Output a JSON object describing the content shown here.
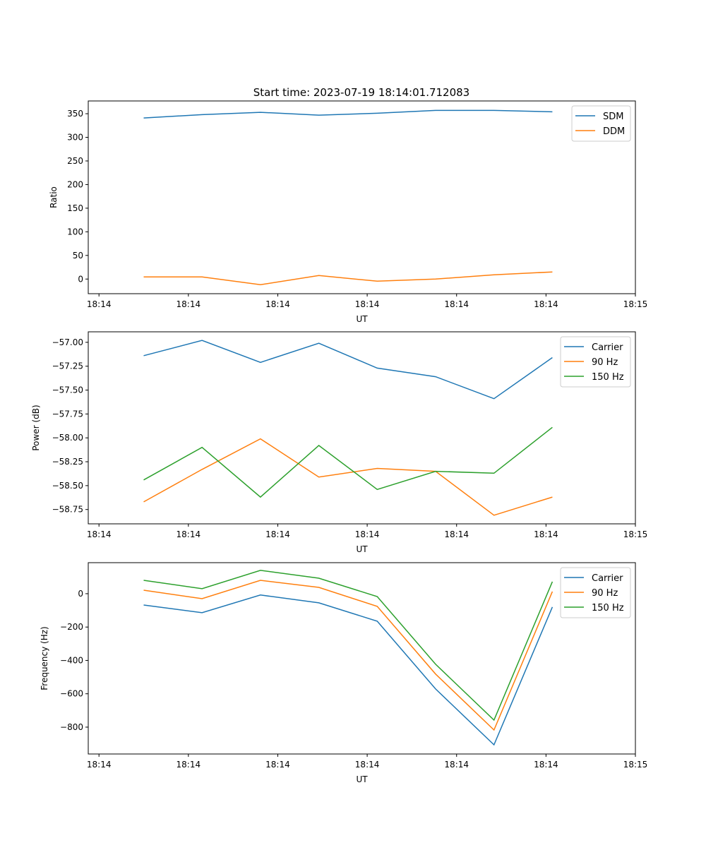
{
  "title": "Start time: 2023-07-19 18:14:01.712083",
  "colors": {
    "c0": "#1f77b4",
    "c1": "#ff7f0e",
    "c2": "#2ca02c"
  },
  "chart_data": [
    {
      "type": "line",
      "title": "Start time: 2023-07-19 18:14:01.712083",
      "xlabel": "UT",
      "ylabel": "Ratio",
      "x": [
        0.5,
        1.153,
        1.806,
        2.459,
        3.112,
        3.765,
        4.418,
        5.071
      ],
      "xlim": [
        -0.12,
        6.0
      ],
      "xticks": [
        0,
        1,
        2,
        3,
        4,
        5,
        6
      ],
      "xtick_labels": [
        "18:14",
        "18:14",
        "18:14",
        "18:14",
        "18:14",
        "18:14",
        "18:15"
      ],
      "ylim": [
        -31,
        377
      ],
      "yticks": [
        0,
        50,
        100,
        150,
        200,
        250,
        300,
        350
      ],
      "ytick_labels": [
        "0",
        "50",
        "100",
        "150",
        "200",
        "250",
        "300",
        "350"
      ],
      "legend": "top-right",
      "series": [
        {
          "name": "SDM",
          "values": [
            341,
            348,
            353,
            347,
            351,
            357,
            357,
            354
          ]
        },
        {
          "name": "DDM",
          "values": [
            4.5,
            4.5,
            -12,
            7.5,
            -4.5,
            0,
            9,
            15
          ]
        }
      ]
    },
    {
      "type": "line",
      "title": "",
      "xlabel": "UT",
      "ylabel": "Power (dB)",
      "x": [
        0.5,
        1.153,
        1.806,
        2.459,
        3.112,
        3.765,
        4.418,
        5.071
      ],
      "xlim": [
        -0.12,
        6.0
      ],
      "xticks": [
        0,
        1,
        2,
        3,
        4,
        5,
        6
      ],
      "xtick_labels": [
        "18:14",
        "18:14",
        "18:14",
        "18:14",
        "18:14",
        "18:14",
        "18:15"
      ],
      "ylim": [
        -58.9,
        -56.89
      ],
      "yticks": [
        -57.0,
        -57.25,
        -57.5,
        -57.75,
        -58.0,
        -58.25,
        -58.5,
        -58.75
      ],
      "ytick_labels": [
        "−57.00",
        "−57.25",
        "−57.50",
        "−57.75",
        "−58.00",
        "−58.25",
        "−58.50",
        "−58.75"
      ],
      "legend": "top-right",
      "series": [
        {
          "name": "Carrier",
          "values": [
            -57.14,
            -56.98,
            -57.21,
            -57.01,
            -57.27,
            -57.36,
            -57.59,
            -57.16
          ]
        },
        {
          "name": "90 Hz",
          "values": [
            -58.67,
            -58.33,
            -58.01,
            -58.41,
            -58.32,
            -58.35,
            -58.81,
            -58.62
          ]
        },
        {
          "name": "150 Hz",
          "values": [
            -58.44,
            -58.1,
            -58.62,
            -58.08,
            -58.54,
            -58.35,
            -58.37,
            -57.89
          ]
        }
      ]
    },
    {
      "type": "line",
      "title": "",
      "xlabel": "UT",
      "ylabel": "Frequency (Hz)",
      "x": [
        0.5,
        1.153,
        1.806,
        2.459,
        3.112,
        3.765,
        4.418,
        5.071
      ],
      "xlim": [
        -0.12,
        6.0
      ],
      "xticks": [
        0,
        1,
        2,
        3,
        4,
        5,
        6
      ],
      "xtick_labels": [
        "18:14",
        "18:14",
        "18:14",
        "18:14",
        "18:14",
        "18:14",
        "18:15"
      ],
      "ylim": [
        -961,
        186
      ],
      "yticks": [
        0,
        -200,
        -400,
        -600,
        -800
      ],
      "ytick_labels": [
        "0",
        "−200",
        "−400",
        "−600",
        "−800"
      ],
      "legend": "top-right",
      "series": [
        {
          "name": "Carrier",
          "values": [
            -68,
            -114,
            -8,
            -55,
            -165,
            -571,
            -906,
            -80
          ]
        },
        {
          "name": "90 Hz",
          "values": [
            21,
            -30,
            80,
            38,
            -76,
            -482,
            -817,
            13
          ]
        },
        {
          "name": "150 Hz",
          "values": [
            80,
            30,
            140,
            93,
            -17,
            -423,
            -758,
            72
          ]
        }
      ]
    }
  ]
}
